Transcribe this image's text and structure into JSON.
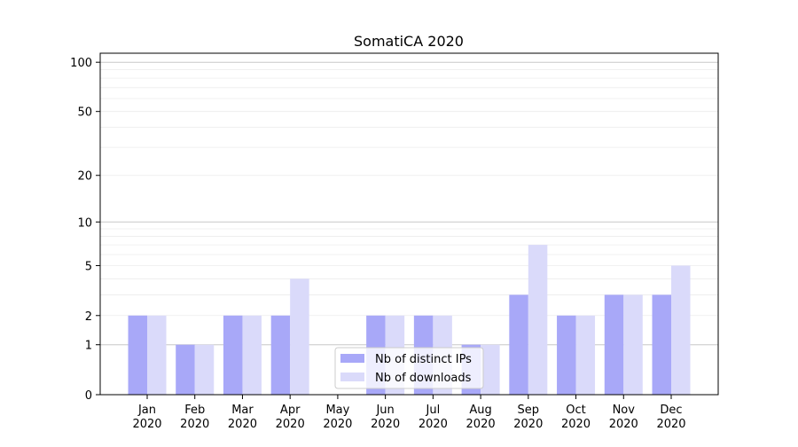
{
  "chart_data": {
    "type": "bar",
    "title": "SomatiCA 2020",
    "xlabel": "",
    "ylabel": "",
    "yscale": "log(1+y)",
    "ylim": [
      0,
      114
    ],
    "yticks": [
      0,
      1,
      2,
      5,
      10,
      20,
      50,
      100
    ],
    "ytick_labels": [
      "0",
      "1",
      "2",
      "5",
      "10",
      "20",
      "50",
      "100"
    ],
    "categories": [
      [
        "Jan",
        "2020"
      ],
      [
        "Feb",
        "2020"
      ],
      [
        "Mar",
        "2020"
      ],
      [
        "Apr",
        "2020"
      ],
      [
        "May",
        "2020"
      ],
      [
        "Jun",
        "2020"
      ],
      [
        "Jul",
        "2020"
      ],
      [
        "Aug",
        "2020"
      ],
      [
        "Sep",
        "2020"
      ],
      [
        "Oct",
        "2020"
      ],
      [
        "Nov",
        "2020"
      ],
      [
        "Dec",
        "2020"
      ]
    ],
    "series": [
      {
        "name": "Nb of distinct IPs",
        "color": "#a8a8f8",
        "values": [
          2,
          1,
          2,
          2,
          0,
          2,
          2,
          1,
          3,
          2,
          3,
          3
        ]
      },
      {
        "name": "Nb of downloads",
        "color": "#dadafa",
        "values": [
          2,
          1,
          2,
          4,
          0,
          2,
          2,
          1,
          7,
          2,
          3,
          5
        ]
      }
    ],
    "grid": true,
    "legend_position": "bottom-center"
  }
}
